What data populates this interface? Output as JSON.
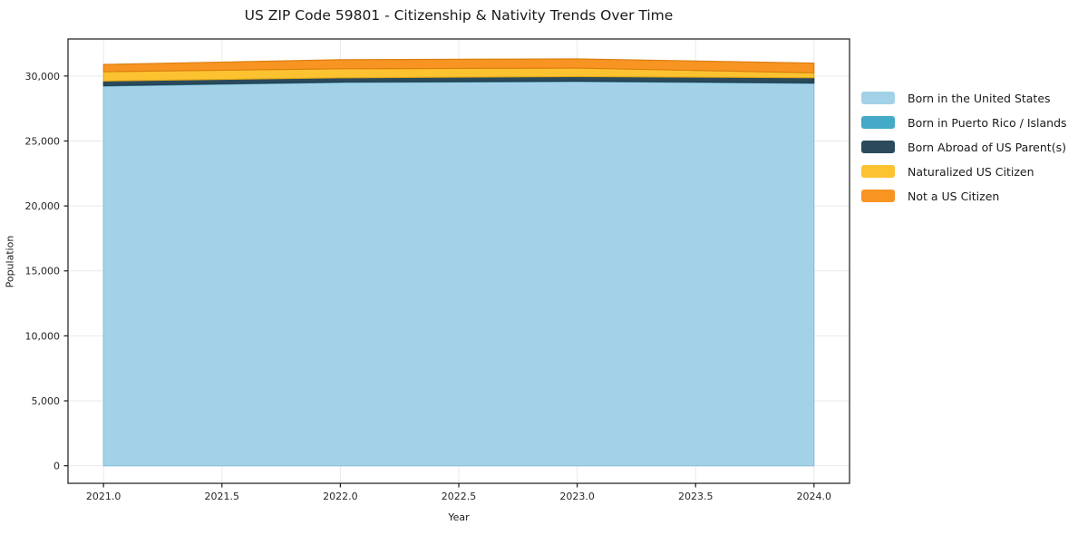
{
  "chart_data": {
    "type": "area",
    "stacked": true,
    "title": "US ZIP Code 59801 - Citizenship & Nativity Trends Over Time",
    "xlabel": "Year",
    "ylabel": "Population",
    "x": [
      2021,
      2022,
      2023,
      2024
    ],
    "series": [
      {
        "name": "Born in the United States",
        "color": "#a3d2e8",
        "edge": "#86bfd9",
        "values": [
          29230,
          29510,
          29580,
          29440
        ]
      },
      {
        "name": "Born in Puerto Rico / Islands",
        "color": "#45a9c8",
        "edge": "#3a91ad",
        "values": [
          30,
          30,
          30,
          30
        ]
      },
      {
        "name": "Born Abroad of US Parent(s)",
        "color": "#2b4a5c",
        "edge": "#223c4b",
        "values": [
          350,
          320,
          350,
          400
        ]
      },
      {
        "name": "Naturalized US Citizen",
        "color": "#fcc230",
        "edge": "#e0a517",
        "values": [
          720,
          700,
          650,
          380
        ]
      },
      {
        "name": "Not a US Citizen",
        "color": "#f79422",
        "edge": "#da7c0e",
        "values": [
          560,
          700,
          710,
          740
        ]
      }
    ],
    "xlim": [
      2020.85,
      2024.15
    ],
    "ylim": [
      -1350,
      32850
    ],
    "x_ticks": [
      {
        "v": 2021.0,
        "label": "2021.0"
      },
      {
        "v": 2021.5,
        "label": "2021.5"
      },
      {
        "v": 2022.0,
        "label": "2022.0"
      },
      {
        "v": 2022.5,
        "label": "2022.5"
      },
      {
        "v": 2023.0,
        "label": "2023.0"
      },
      {
        "v": 2023.5,
        "label": "2023.5"
      },
      {
        "v": 2024.0,
        "label": "2024.0"
      }
    ],
    "y_ticks": [
      {
        "v": 0,
        "label": "0"
      },
      {
        "v": 5000,
        "label": "5,000"
      },
      {
        "v": 10000,
        "label": "10,000"
      },
      {
        "v": 15000,
        "label": "15,000"
      },
      {
        "v": 20000,
        "label": "20,000"
      },
      {
        "v": 25000,
        "label": "25,000"
      },
      {
        "v": 30000,
        "label": "30,000"
      }
    ],
    "grid": true,
    "grid_color": "#e9e9e9",
    "spine_color": "#1a1a1a",
    "tick_label_color": "#262626",
    "legend_position": "right"
  }
}
